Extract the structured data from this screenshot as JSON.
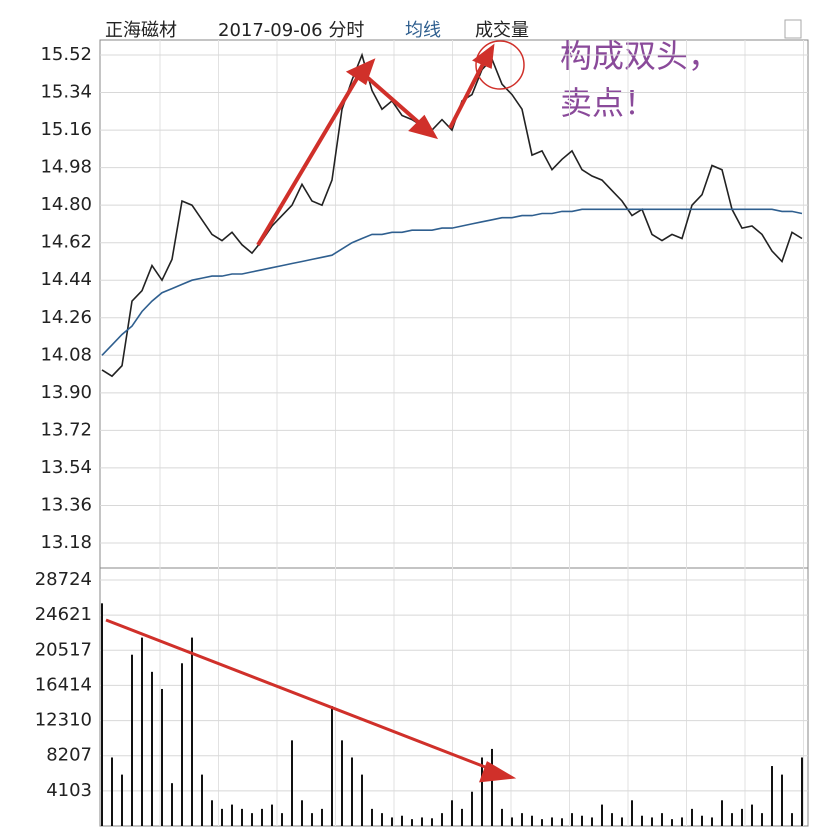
{
  "chart_data": [
    {
      "type": "line",
      "title": "正海磁材",
      "subtitle": "2017-09-06 分时",
      "annotations": [
        "构成双头，",
        "卖点！"
      ],
      "ylim": [
        13.18,
        15.52
      ],
      "yticks": [
        15.52,
        15.34,
        15.16,
        14.98,
        {
          "value": 14.8,
          "label": "14.80"
        },
        14.62,
        14.44,
        14.26,
        14.08,
        {
          "value": 13.9,
          "label": "13.90"
        },
        13.72,
        13.54,
        13.36,
        13.18
      ],
      "grid": true,
      "series": [
        {
          "color": "#222222",
          "values": [
            14.01,
            13.98,
            14.03,
            14.34,
            14.39,
            14.51,
            14.44,
            14.54,
            14.82,
            14.8,
            14.73,
            14.66,
            14.63,
            14.67,
            14.61,
            14.57,
            14.63,
            14.7,
            14.75,
            14.8,
            14.9,
            14.82,
            14.8,
            14.92,
            15.26,
            15.4,
            15.52,
            15.35,
            15.26,
            15.3,
            15.23,
            15.21,
            15.18,
            15.16,
            15.21,
            15.16,
            15.3,
            15.33,
            15.45,
            15.5,
            15.38,
            15.33,
            15.26,
            15.04,
            15.06,
            14.97,
            15.02,
            15.06,
            14.97,
            14.94,
            14.92,
            14.87,
            14.82,
            14.75,
            14.78,
            14.66,
            14.63,
            14.66,
            14.64,
            14.8,
            14.85,
            14.99,
            14.97,
            14.78,
            14.69,
            14.7,
            14.66,
            14.58,
            14.53,
            14.67,
            14.64
          ]
        },
        {
          "name": "均线",
          "color": "#2f5f8f",
          "values": [
            14.08,
            14.13,
            14.18,
            14.22,
            14.29,
            14.34,
            14.38,
            14.4,
            14.42,
            14.44,
            14.45,
            14.46,
            14.46,
            14.47,
            14.47,
            14.48,
            14.49,
            14.5,
            14.51,
            14.52,
            14.53,
            14.54,
            14.55,
            14.56,
            14.59,
            14.62,
            14.64,
            14.66,
            14.66,
            14.67,
            14.67,
            14.68,
            14.68,
            14.68,
            14.69,
            14.69,
            14.7,
            14.71,
            14.72,
            14.73,
            14.74,
            14.74,
            14.75,
            14.75,
            14.76,
            14.76,
            14.77,
            14.77,
            14.78,
            14.78,
            14.78,
            14.78,
            14.78,
            14.78,
            14.78,
            14.78,
            14.78,
            14.78,
            14.78,
            14.78,
            14.78,
            14.78,
            14.78,
            14.78,
            14.78,
            14.78,
            14.78,
            14.78,
            14.77,
            14.77,
            14.76
          ]
        }
      ]
    },
    {
      "type": "bar",
      "title": "成交量",
      "color": "#111111",
      "ylim": [
        0,
        28724
      ],
      "yticks": [
        28724,
        24621,
        20517,
        16414,
        12310,
        8207,
        4103
      ],
      "values": [
        26000,
        8000,
        6000,
        20000,
        22000,
        18000,
        16000,
        5000,
        19000,
        22000,
        6000,
        3000,
        2000,
        2500,
        2000,
        1500,
        2000,
        2500,
        1500,
        10000,
        3000,
        1500,
        2000,
        14000,
        10000,
        8000,
        6000,
        2000,
        1500,
        1000,
        1200,
        800,
        1000,
        900,
        1500,
        3000,
        2000,
        4000,
        8000,
        9000,
        2000,
        1000,
        1500,
        1200,
        800,
        1000,
        900,
        1500,
        1200,
        1000,
        2500,
        1500,
        1000,
        3000,
        1200,
        1000,
        1500,
        800,
        1000,
        2000,
        1200,
        1000,
        3000,
        1500,
        2000,
        2500,
        1500,
        7000,
        6000,
        1500,
        8000
      ]
    }
  ]
}
